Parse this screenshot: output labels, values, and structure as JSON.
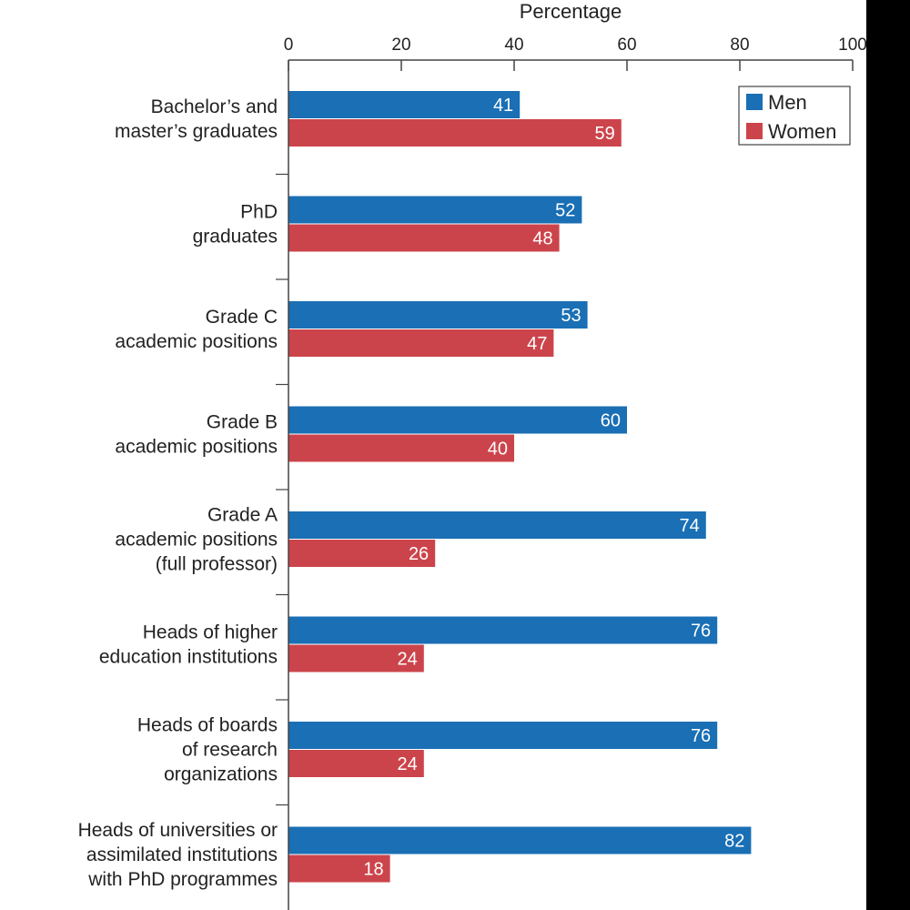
{
  "chart_data": {
    "type": "bar",
    "orientation": "horizontal",
    "xlabel": "Percentage",
    "xlim": [
      0,
      100
    ],
    "xticks": [
      0,
      20,
      40,
      60,
      80,
      100
    ],
    "categories": [
      [
        "Bachelor’s and",
        "master’s graduates"
      ],
      [
        "PhD",
        "graduates"
      ],
      [
        "Grade C",
        "academic positions"
      ],
      [
        "Grade B",
        "academic positions"
      ],
      [
        "Grade A",
        "academic positions",
        "(full professor)"
      ],
      [
        "Heads of higher",
        "education institutions"
      ],
      [
        "Heads of boards",
        "of research",
        "organizations"
      ],
      [
        "Heads of universities or",
        "assimilated institutions",
        "with PhD programmes"
      ]
    ],
    "series": [
      {
        "name": "Men",
        "color": "#1a6fb5",
        "values": [
          41,
          52,
          53,
          60,
          74,
          76,
          76,
          82
        ]
      },
      {
        "name": "Women",
        "color": "#cc444b",
        "values": [
          59,
          48,
          47,
          40,
          26,
          24,
          24,
          18
        ]
      }
    ],
    "legend": {
      "position": "top-right",
      "entries": [
        "Men",
        "Women"
      ]
    }
  }
}
